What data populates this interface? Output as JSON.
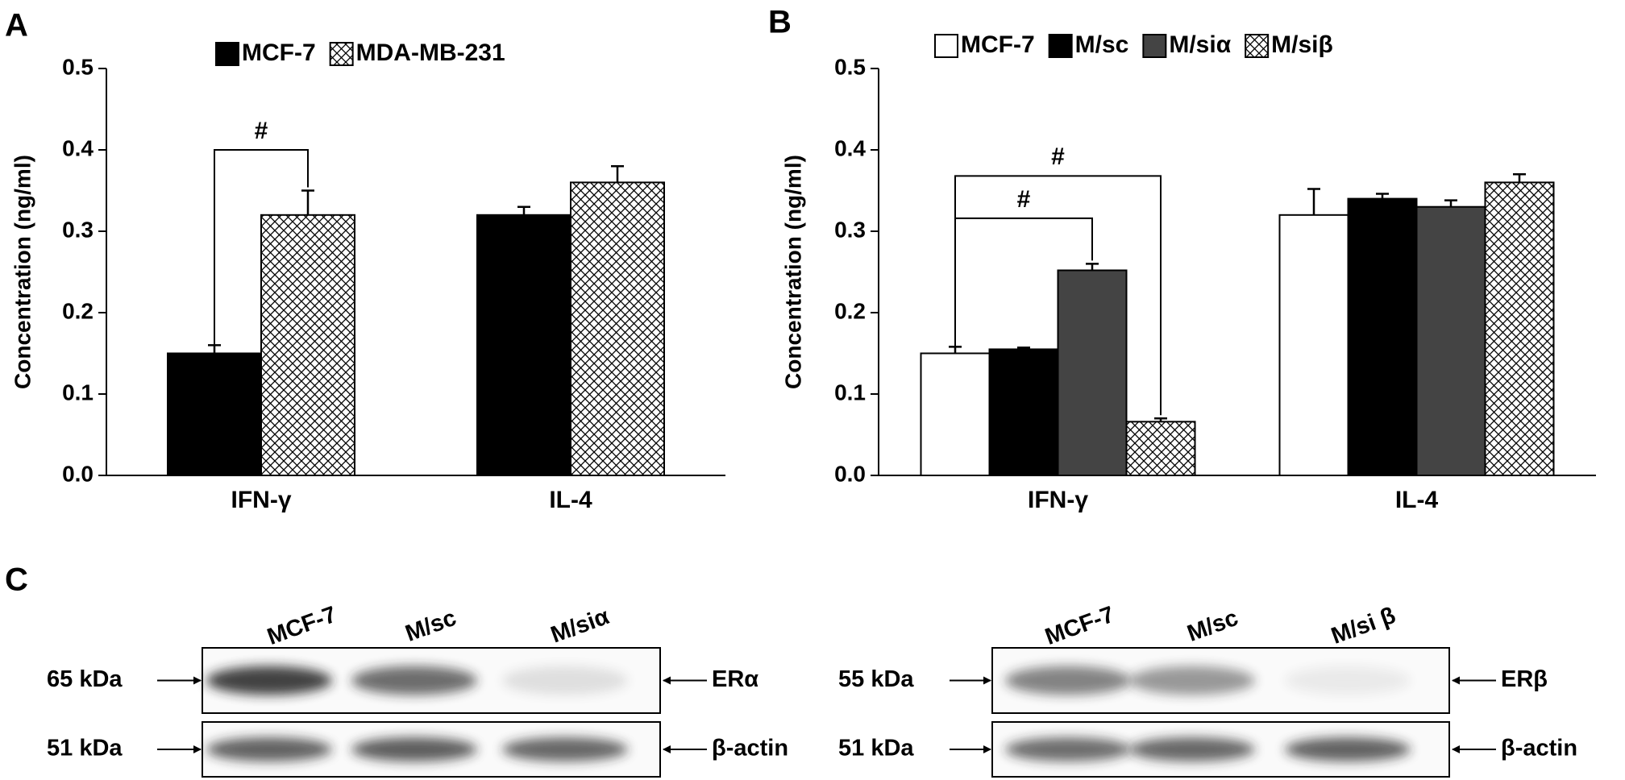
{
  "chart_data": [
    {
      "type": "bar",
      "panel": "A",
      "y_label": "Concentration (ng/ml)",
      "categories": [
        "IFN-γ",
        "IL-4"
      ],
      "series": [
        {
          "name": "MCF-7",
          "color": "#000000",
          "values": [
            0.15,
            0.32
          ],
          "errors": [
            0.01,
            0.01
          ]
        },
        {
          "name": "MDA-MB-231",
          "color": "#ffffff",
          "pattern": "crosshatch",
          "values": [
            0.32,
            0.36
          ],
          "errors": [
            0.03,
            0.02
          ]
        }
      ],
      "ylim": [
        0,
        0.5
      ],
      "yticks": [
        {
          "value": 0,
          "label": "0.0"
        },
        0.1,
        0.2,
        0.3,
        0.4,
        0.5
      ],
      "annotations": [
        {
          "text": "#"
        }
      ]
    },
    {
      "type": "bar",
      "panel": "B",
      "y_label": "Concentration (ng/ml)",
      "categories": [
        "IFN-γ",
        "IL-4"
      ],
      "series": [
        {
          "name": "MCF-7",
          "color": "#ffffff",
          "values": [
            0.15,
            0.32
          ],
          "errors": [
            0.008,
            0.032
          ]
        },
        {
          "name": "M/sc",
          "color": "#000000",
          "values": [
            0.155,
            0.34
          ],
          "errors": [
            0.002,
            0.006
          ]
        },
        {
          "name": "M/siα",
          "color": "#444444",
          "values": [
            0.252,
            0.33
          ],
          "errors": [
            0.008,
            0.008
          ]
        },
        {
          "name": "M/siβ",
          "color": "#ffffff",
          "pattern": "crosshatch",
          "values": [
            0.066,
            0.36
          ],
          "errors": [
            0.004,
            0.01
          ]
        }
      ],
      "ylim": [
        0,
        0.5
      ],
      "yticks": [
        {
          "value": 0,
          "label": "0.0"
        },
        0.1,
        0.2,
        0.3,
        0.4,
        0.5
      ],
      "annotations": [
        {
          "text": "#"
        },
        {
          "text": "#"
        }
      ]
    }
  ],
  "panel_c": {
    "label": "C",
    "blots": [
      {
        "lanes": [
          "MCF-7",
          "M/sc",
          "M/siα"
        ],
        "rows": [
          {
            "size": "65 kDa",
            "protein": "ERα"
          },
          {
            "size": "51 kDa",
            "protein": "β-actin"
          }
        ]
      },
      {
        "lanes": [
          "MCF-7",
          "M/sc",
          "M/si β"
        ],
        "rows": [
          {
            "size": "55 kDa",
            "protein": "ERβ"
          },
          {
            "size": "51 kDa",
            "protein": "β-actin"
          }
        ]
      }
    ]
  }
}
